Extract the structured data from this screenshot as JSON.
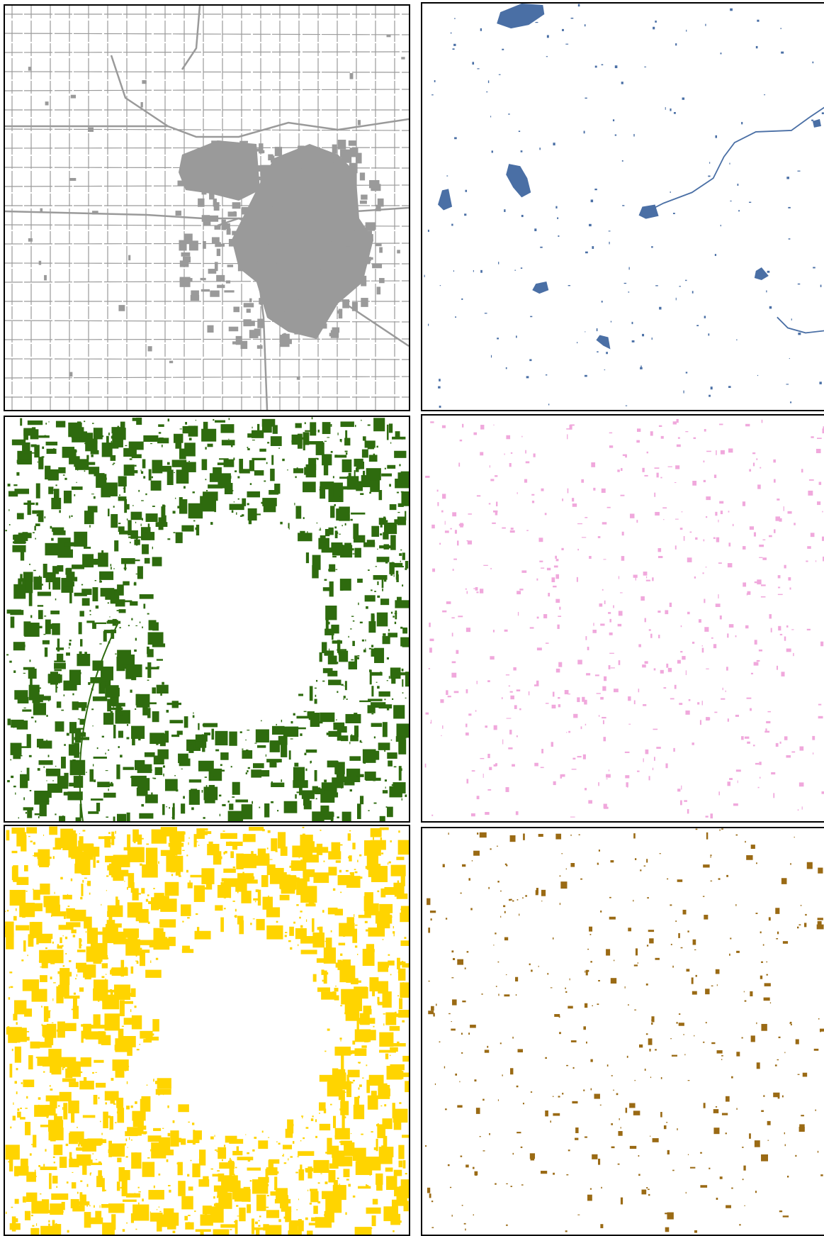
{
  "panels": [
    {
      "id": "p0",
      "layer": "developed",
      "color": "#9a9a9a"
    },
    {
      "id": "p1",
      "layer": "water",
      "color": "#4a6fa5"
    },
    {
      "id": "p2",
      "layer": "forest",
      "color": "#2e6b0e"
    },
    {
      "id": "p3",
      "layer": "shrub",
      "color": "#f0a8dc"
    },
    {
      "id": "p4",
      "layer": "cultivated",
      "color": "#ffd400"
    },
    {
      "id": "p5",
      "layer": "barren",
      "color": "#9a6a14"
    }
  ]
}
